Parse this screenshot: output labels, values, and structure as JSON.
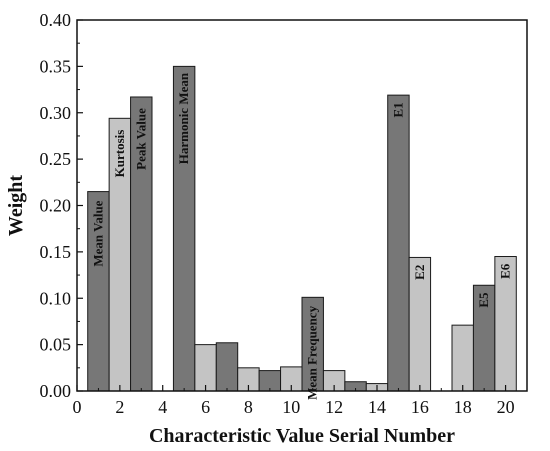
{
  "chart_data": {
    "type": "bar",
    "xlabel": "Characteristic Value Serial Number",
    "ylabel": "Weight",
    "xlim": [
      0,
      21
    ],
    "ylim": [
      0,
      0.4
    ],
    "x_ticks": [
      0,
      2,
      4,
      6,
      8,
      10,
      12,
      14,
      16,
      18,
      20
    ],
    "y_ticks": [
      0.0,
      0.05,
      0.1,
      0.15,
      0.2,
      0.25,
      0.3,
      0.35,
      0.4
    ],
    "colors": {
      "dark": "#777777",
      "light": "#c4c4c4",
      "edge": "#1a1a1a"
    },
    "bars": [
      {
        "x": 1,
        "value": 0.215,
        "shade": "dark",
        "label": "Mean Value"
      },
      {
        "x": 2,
        "value": 0.294,
        "shade": "light",
        "label": "Kurtosis"
      },
      {
        "x": 3,
        "value": 0.317,
        "shade": "dark",
        "label": "Peak Value"
      },
      {
        "x": 5,
        "value": 0.35,
        "shade": "dark",
        "label": "Harmonic Mean"
      },
      {
        "x": 6,
        "value": 0.05,
        "shade": "light",
        "label": ""
      },
      {
        "x": 7,
        "value": 0.052,
        "shade": "dark",
        "label": ""
      },
      {
        "x": 8,
        "value": 0.025,
        "shade": "light",
        "label": ""
      },
      {
        "x": 9,
        "value": 0.022,
        "shade": "dark",
        "label": ""
      },
      {
        "x": 10,
        "value": 0.026,
        "shade": "light",
        "label": ""
      },
      {
        "x": 11,
        "value": 0.101,
        "shade": "dark",
        "label": "Mean Frequency"
      },
      {
        "x": 12,
        "value": 0.022,
        "shade": "light",
        "label": ""
      },
      {
        "x": 13,
        "value": 0.01,
        "shade": "dark",
        "label": ""
      },
      {
        "x": 14,
        "value": 0.008,
        "shade": "light",
        "label": ""
      },
      {
        "x": 15,
        "value": 0.319,
        "shade": "dark",
        "label": "E1"
      },
      {
        "x": 16,
        "value": 0.144,
        "shade": "light",
        "label": "E2"
      },
      {
        "x": 18,
        "value": 0.071,
        "shade": "light",
        "label": ""
      },
      {
        "x": 19,
        "value": 0.114,
        "shade": "dark",
        "label": "E5"
      },
      {
        "x": 20,
        "value": 0.145,
        "shade": "light",
        "label": "E6"
      }
    ]
  }
}
